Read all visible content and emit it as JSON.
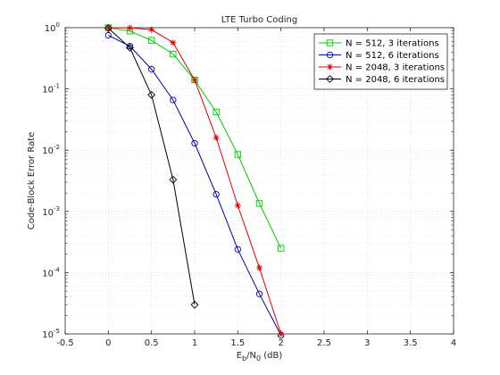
{
  "chart_data": {
    "type": "line",
    "title": "LTE Turbo Coding",
    "xlabel": {
      "main": "E",
      "sub1": "b",
      "mid": "/N",
      "sub2": "0",
      "unit": " (dB)"
    },
    "ylabel": "Code-Block Error Rate",
    "xlim": [
      -0.5,
      4
    ],
    "ylim": [
      1e-05,
      1
    ],
    "yscale": "log",
    "grid": true,
    "legend_position": "top-right",
    "x_ticks": [
      "-0.5",
      "0",
      "0.5",
      "1",
      "1.5",
      "2",
      "2.5",
      "3",
      "3.5",
      "4"
    ],
    "y_ticks": [
      {
        "base": "10",
        "exp": "0"
      },
      {
        "base": "10",
        "exp": "-1"
      },
      {
        "base": "10",
        "exp": "-2"
      },
      {
        "base": "10",
        "exp": "-3"
      },
      {
        "base": "10",
        "exp": "-4"
      },
      {
        "base": "10",
        "exp": "-5"
      }
    ],
    "series": [
      {
        "name": "N = 512, 3 iterations",
        "color": "#00cc00",
        "marker": "square",
        "x": [
          0,
          0.25,
          0.5,
          0.75,
          1.0,
          1.25,
          1.5,
          1.75,
          2.0
        ],
        "y": [
          1.0,
          0.88,
          0.62,
          0.37,
          0.14,
          0.042,
          0.0085,
          0.00135,
          0.00025
        ]
      },
      {
        "name": "N = 512, 6 iterations",
        "color": "#0000aa",
        "marker": "circle",
        "x": [
          0,
          0.25,
          0.5,
          0.75,
          1.0,
          1.25,
          1.5,
          1.75,
          2.0
        ],
        "y": [
          0.75,
          0.5,
          0.21,
          0.066,
          0.013,
          0.0019,
          0.00024,
          4.5e-05,
          9.5e-06
        ]
      },
      {
        "name": "N = 2048, 3 iterations",
        "color": "#dd0000",
        "marker": "star",
        "x": [
          0,
          0.25,
          0.5,
          0.75,
          1.0,
          1.25,
          1.5,
          1.75,
          2.0
        ],
        "y": [
          1.0,
          0.99,
          0.93,
          0.57,
          0.14,
          0.016,
          0.00125,
          0.00012,
          1e-05
        ]
      },
      {
        "name": "N = 2048, 6 iterations",
        "color": "#000000",
        "marker": "diamond",
        "x": [
          0,
          0.25,
          0.5,
          0.75,
          1.0
        ],
        "y": [
          0.98,
          0.47,
          0.08,
          0.0033,
          3e-05
        ]
      }
    ]
  }
}
